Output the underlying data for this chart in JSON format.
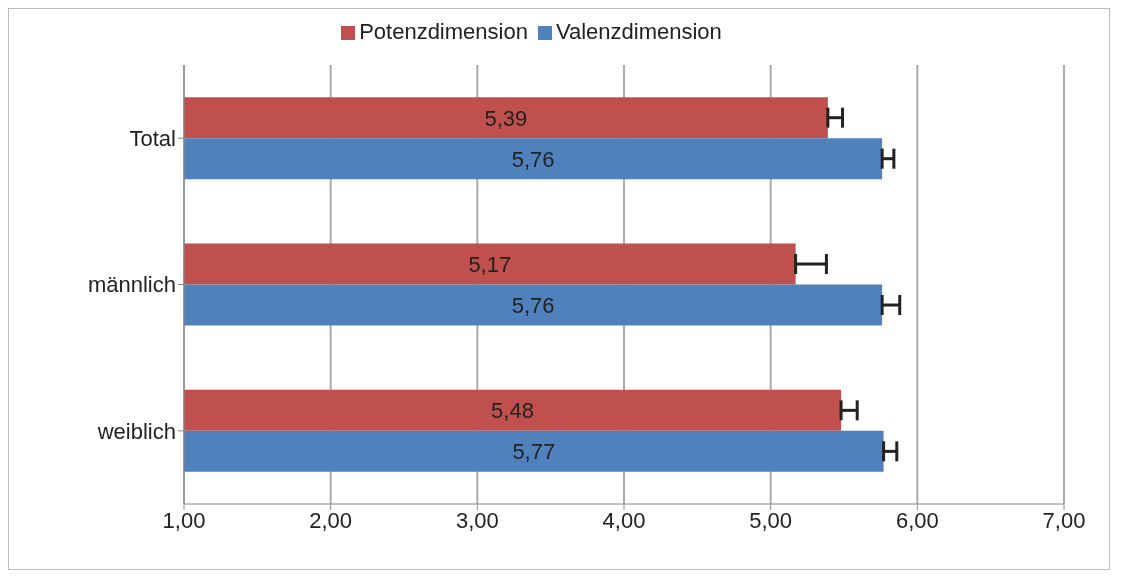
{
  "chart_data": {
    "type": "bar",
    "orientation": "horizontal",
    "categories": [
      "Total",
      "männlich",
      "weiblich"
    ],
    "series": [
      {
        "name": "Potenzdimension",
        "color": "#c0504d",
        "values": [
          5.39,
          5.17,
          5.48
        ],
        "value_labels": [
          "5,39",
          "5,17",
          "5,48"
        ],
        "errors": [
          [
            5.39,
            5.49
          ],
          [
            5.17,
            5.38
          ],
          [
            5.48,
            5.59
          ]
        ]
      },
      {
        "name": "Valenzdimension",
        "color": "#4f81bd",
        "values": [
          5.76,
          5.76,
          5.77
        ],
        "value_labels": [
          "5,76",
          "5,76",
          "5,77"
        ],
        "errors": [
          [
            5.76,
            5.84
          ],
          [
            5.76,
            5.88
          ],
          [
            5.77,
            5.86
          ]
        ]
      }
    ],
    "xlim": [
      1,
      7
    ],
    "xticks": [
      {
        "value": 1,
        "label": "1,00"
      },
      {
        "value": 2,
        "label": "2,00"
      },
      {
        "value": 3,
        "label": "3,00"
      },
      {
        "value": 4,
        "label": "4,00"
      },
      {
        "value": 5,
        "label": "5,00"
      },
      {
        "value": 6,
        "label": "6,00"
      },
      {
        "value": 7,
        "label": "7,00"
      }
    ],
    "grid": "x",
    "legend": "top"
  }
}
